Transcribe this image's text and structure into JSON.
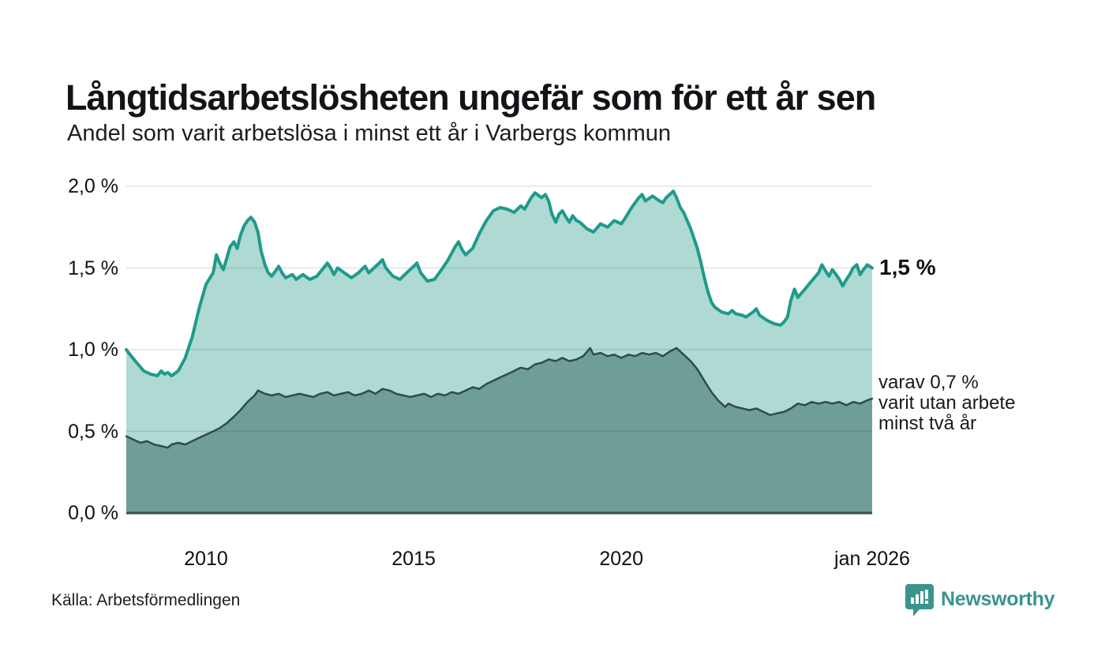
{
  "header": {
    "title": "Långtidsarbetslösheten ungefär som för ett år sen",
    "subtitle": "Andel som varit arbetslösa i minst ett år i Varbergs kommun"
  },
  "chart_data": {
    "type": "area",
    "title": "Långtidsarbetslösheten ungefär som för ett år sen",
    "subtitle": "Andel som varit arbetslösa i minst ett år i Varbergs kommun",
    "unit": "%",
    "grid": true,
    "x_range": [
      2008.08,
      2026.04
    ],
    "y_range": [
      0,
      2.0
    ],
    "x_ticks": [
      {
        "x": 2010,
        "label": "2010"
      },
      {
        "x": 2015,
        "label": "2015"
      },
      {
        "x": 2020,
        "label": "2020"
      },
      {
        "x": 2026.04,
        "label": "jan 2026"
      }
    ],
    "y_ticks": [
      {
        "v": 0.0,
        "label": "0,0 %"
      },
      {
        "v": 0.5,
        "label": "0,5 %"
      },
      {
        "v": 1.0,
        "label": "1,0 %"
      },
      {
        "v": 1.5,
        "label": "1,5 %"
      },
      {
        "v": 2.0,
        "label": "2,0 %"
      }
    ],
    "series": [
      {
        "name": "Andel som varit arbetslösa minst ett år",
        "line_color": "#1f9a8b",
        "fill_color": "#aedad3",
        "line_width": 4,
        "latest_value": "1,5 %",
        "points": [
          [
            2008.08,
            1.0
          ],
          [
            2008.17,
            0.97
          ],
          [
            2008.33,
            0.92
          ],
          [
            2008.5,
            0.87
          ],
          [
            2008.67,
            0.85
          ],
          [
            2008.83,
            0.84
          ],
          [
            2008.92,
            0.87
          ],
          [
            2009.0,
            0.85
          ],
          [
            2009.08,
            0.86
          ],
          [
            2009.17,
            0.84
          ],
          [
            2009.33,
            0.87
          ],
          [
            2009.5,
            0.95
          ],
          [
            2009.67,
            1.08
          ],
          [
            2009.83,
            1.25
          ],
          [
            2010.0,
            1.4
          ],
          [
            2010.17,
            1.47
          ],
          [
            2010.25,
            1.58
          ],
          [
            2010.33,
            1.53
          ],
          [
            2010.42,
            1.49
          ],
          [
            2010.5,
            1.56
          ],
          [
            2010.58,
            1.63
          ],
          [
            2010.67,
            1.66
          ],
          [
            2010.75,
            1.62
          ],
          [
            2010.83,
            1.7
          ],
          [
            2010.92,
            1.76
          ],
          [
            2011.0,
            1.79
          ],
          [
            2011.08,
            1.81
          ],
          [
            2011.17,
            1.78
          ],
          [
            2011.25,
            1.72
          ],
          [
            2011.33,
            1.6
          ],
          [
            2011.42,
            1.52
          ],
          [
            2011.5,
            1.47
          ],
          [
            2011.58,
            1.45
          ],
          [
            2011.67,
            1.48
          ],
          [
            2011.75,
            1.51
          ],
          [
            2011.83,
            1.47
          ],
          [
            2011.92,
            1.44
          ],
          [
            2012.08,
            1.46
          ],
          [
            2012.17,
            1.43
          ],
          [
            2012.33,
            1.46
          ],
          [
            2012.5,
            1.43
          ],
          [
            2012.67,
            1.45
          ],
          [
            2012.83,
            1.5
          ],
          [
            2012.92,
            1.53
          ],
          [
            2013.0,
            1.5
          ],
          [
            2013.08,
            1.46
          ],
          [
            2013.17,
            1.5
          ],
          [
            2013.33,
            1.47
          ],
          [
            2013.5,
            1.44
          ],
          [
            2013.67,
            1.47
          ],
          [
            2013.83,
            1.51
          ],
          [
            2013.92,
            1.47
          ],
          [
            2014.0,
            1.49
          ],
          [
            2014.17,
            1.53
          ],
          [
            2014.25,
            1.55
          ],
          [
            2014.33,
            1.5
          ],
          [
            2014.5,
            1.45
          ],
          [
            2014.67,
            1.43
          ],
          [
            2014.83,
            1.47
          ],
          [
            2015.0,
            1.51
          ],
          [
            2015.08,
            1.53
          ],
          [
            2015.17,
            1.47
          ],
          [
            2015.33,
            1.42
          ],
          [
            2015.5,
            1.43
          ],
          [
            2015.67,
            1.49
          ],
          [
            2015.83,
            1.55
          ],
          [
            2016.0,
            1.63
          ],
          [
            2016.08,
            1.66
          ],
          [
            2016.17,
            1.61
          ],
          [
            2016.25,
            1.58
          ],
          [
            2016.42,
            1.62
          ],
          [
            2016.58,
            1.71
          ],
          [
            2016.75,
            1.79
          ],
          [
            2016.92,
            1.85
          ],
          [
            2017.08,
            1.87
          ],
          [
            2017.25,
            1.86
          ],
          [
            2017.42,
            1.84
          ],
          [
            2017.58,
            1.88
          ],
          [
            2017.67,
            1.86
          ],
          [
            2017.83,
            1.93
          ],
          [
            2017.92,
            1.96
          ],
          [
            2018.08,
            1.93
          ],
          [
            2018.17,
            1.95
          ],
          [
            2018.25,
            1.91
          ],
          [
            2018.33,
            1.83
          ],
          [
            2018.42,
            1.78
          ],
          [
            2018.5,
            1.83
          ],
          [
            2018.58,
            1.85
          ],
          [
            2018.67,
            1.81
          ],
          [
            2018.75,
            1.78
          ],
          [
            2018.83,
            1.82
          ],
          [
            2018.92,
            1.79
          ],
          [
            2019.0,
            1.78
          ],
          [
            2019.17,
            1.74
          ],
          [
            2019.33,
            1.72
          ],
          [
            2019.5,
            1.77
          ],
          [
            2019.67,
            1.75
          ],
          [
            2019.83,
            1.79
          ],
          [
            2020.0,
            1.77
          ],
          [
            2020.08,
            1.8
          ],
          [
            2020.25,
            1.87
          ],
          [
            2020.42,
            1.93
          ],
          [
            2020.5,
            1.95
          ],
          [
            2020.58,
            1.91
          ],
          [
            2020.75,
            1.94
          ],
          [
            2020.92,
            1.91
          ],
          [
            2021.0,
            1.9
          ],
          [
            2021.08,
            1.93
          ],
          [
            2021.25,
            1.97
          ],
          [
            2021.33,
            1.93
          ],
          [
            2021.42,
            1.87
          ],
          [
            2021.5,
            1.84
          ],
          [
            2021.67,
            1.74
          ],
          [
            2021.83,
            1.62
          ],
          [
            2021.92,
            1.53
          ],
          [
            2022.0,
            1.44
          ],
          [
            2022.08,
            1.36
          ],
          [
            2022.17,
            1.29
          ],
          [
            2022.25,
            1.26
          ],
          [
            2022.42,
            1.23
          ],
          [
            2022.58,
            1.22
          ],
          [
            2022.67,
            1.24
          ],
          [
            2022.75,
            1.22
          ],
          [
            2022.92,
            1.21
          ],
          [
            2023.0,
            1.2
          ],
          [
            2023.17,
            1.23
          ],
          [
            2023.25,
            1.25
          ],
          [
            2023.33,
            1.21
          ],
          [
            2023.5,
            1.18
          ],
          [
            2023.67,
            1.16
          ],
          [
            2023.83,
            1.15
          ],
          [
            2023.92,
            1.17
          ],
          [
            2024.0,
            1.2
          ],
          [
            2024.08,
            1.3
          ],
          [
            2024.17,
            1.37
          ],
          [
            2024.25,
            1.32
          ],
          [
            2024.42,
            1.37
          ],
          [
            2024.58,
            1.42
          ],
          [
            2024.75,
            1.47
          ],
          [
            2024.83,
            1.52
          ],
          [
            2024.92,
            1.48
          ],
          [
            2025.0,
            1.45
          ],
          [
            2025.08,
            1.49
          ],
          [
            2025.17,
            1.46
          ],
          [
            2025.25,
            1.43
          ],
          [
            2025.33,
            1.39
          ],
          [
            2025.42,
            1.43
          ],
          [
            2025.5,
            1.46
          ],
          [
            2025.58,
            1.5
          ],
          [
            2025.67,
            1.52
          ],
          [
            2025.75,
            1.46
          ],
          [
            2025.83,
            1.49
          ],
          [
            2025.92,
            1.52
          ],
          [
            2026.04,
            1.5
          ]
        ]
      },
      {
        "name": "varav utan arbete minst två år",
        "line_color": "#2e4c48",
        "fill_color": "#6f9d97",
        "line_width": 2.5,
        "latest_value": "0,7 %",
        "points": [
          [
            2008.08,
            0.47
          ],
          [
            2008.25,
            0.45
          ],
          [
            2008.42,
            0.43
          ],
          [
            2008.58,
            0.44
          ],
          [
            2008.75,
            0.42
          ],
          [
            2008.92,
            0.41
          ],
          [
            2009.08,
            0.4
          ],
          [
            2009.17,
            0.42
          ],
          [
            2009.33,
            0.43
          ],
          [
            2009.5,
            0.42
          ],
          [
            2009.67,
            0.44
          ],
          [
            2009.83,
            0.46
          ],
          [
            2010.0,
            0.48
          ],
          [
            2010.17,
            0.5
          ],
          [
            2010.33,
            0.52
          ],
          [
            2010.5,
            0.55
          ],
          [
            2010.67,
            0.59
          ],
          [
            2010.83,
            0.63
          ],
          [
            2011.0,
            0.68
          ],
          [
            2011.17,
            0.72
          ],
          [
            2011.25,
            0.75
          ],
          [
            2011.42,
            0.73
          ],
          [
            2011.58,
            0.72
          ],
          [
            2011.75,
            0.73
          ],
          [
            2011.92,
            0.71
          ],
          [
            2012.08,
            0.72
          ],
          [
            2012.25,
            0.73
          ],
          [
            2012.42,
            0.72
          ],
          [
            2012.58,
            0.71
          ],
          [
            2012.75,
            0.73
          ],
          [
            2012.92,
            0.74
          ],
          [
            2013.08,
            0.72
          ],
          [
            2013.25,
            0.73
          ],
          [
            2013.42,
            0.74
          ],
          [
            2013.58,
            0.72
          ],
          [
            2013.75,
            0.73
          ],
          [
            2013.92,
            0.75
          ],
          [
            2014.08,
            0.73
          ],
          [
            2014.25,
            0.76
          ],
          [
            2014.42,
            0.75
          ],
          [
            2014.58,
            0.73
          ],
          [
            2014.75,
            0.72
          ],
          [
            2014.92,
            0.71
          ],
          [
            2015.08,
            0.72
          ],
          [
            2015.25,
            0.73
          ],
          [
            2015.42,
            0.71
          ],
          [
            2015.58,
            0.73
          ],
          [
            2015.75,
            0.72
          ],
          [
            2015.92,
            0.74
          ],
          [
            2016.08,
            0.73
          ],
          [
            2016.25,
            0.75
          ],
          [
            2016.42,
            0.77
          ],
          [
            2016.58,
            0.76
          ],
          [
            2016.75,
            0.79
          ],
          [
            2016.92,
            0.81
          ],
          [
            2017.08,
            0.83
          ],
          [
            2017.25,
            0.85
          ],
          [
            2017.42,
            0.87
          ],
          [
            2017.58,
            0.89
          ],
          [
            2017.75,
            0.88
          ],
          [
            2017.92,
            0.91
          ],
          [
            2018.08,
            0.92
          ],
          [
            2018.25,
            0.94
          ],
          [
            2018.42,
            0.93
          ],
          [
            2018.58,
            0.95
          ],
          [
            2018.75,
            0.93
          ],
          [
            2018.92,
            0.94
          ],
          [
            2019.08,
            0.96
          ],
          [
            2019.25,
            1.01
          ],
          [
            2019.33,
            0.97
          ],
          [
            2019.5,
            0.98
          ],
          [
            2019.67,
            0.96
          ],
          [
            2019.83,
            0.97
          ],
          [
            2020.0,
            0.95
          ],
          [
            2020.17,
            0.97
          ],
          [
            2020.33,
            0.96
          ],
          [
            2020.5,
            0.98
          ],
          [
            2020.67,
            0.97
          ],
          [
            2020.83,
            0.98
          ],
          [
            2021.0,
            0.96
          ],
          [
            2021.17,
            0.99
          ],
          [
            2021.33,
            1.01
          ],
          [
            2021.5,
            0.97
          ],
          [
            2021.67,
            0.93
          ],
          [
            2021.83,
            0.88
          ],
          [
            2022.0,
            0.81
          ],
          [
            2022.17,
            0.74
          ],
          [
            2022.33,
            0.69
          ],
          [
            2022.5,
            0.65
          ],
          [
            2022.58,
            0.67
          ],
          [
            2022.75,
            0.65
          ],
          [
            2022.92,
            0.64
          ],
          [
            2023.08,
            0.63
          ],
          [
            2023.25,
            0.64
          ],
          [
            2023.42,
            0.62
          ],
          [
            2023.58,
            0.6
          ],
          [
            2023.75,
            0.61
          ],
          [
            2023.92,
            0.62
          ],
          [
            2024.08,
            0.64
          ],
          [
            2024.25,
            0.67
          ],
          [
            2024.42,
            0.66
          ],
          [
            2024.58,
            0.68
          ],
          [
            2024.75,
            0.67
          ],
          [
            2024.92,
            0.68
          ],
          [
            2025.08,
            0.67
          ],
          [
            2025.25,
            0.68
          ],
          [
            2025.42,
            0.66
          ],
          [
            2025.58,
            0.68
          ],
          [
            2025.75,
            0.67
          ],
          [
            2025.92,
            0.69
          ],
          [
            2026.04,
            0.7
          ]
        ]
      }
    ],
    "axis_colors": {
      "gridline": "rgba(0,0,0,0.11)",
      "baseline": "#34504b"
    }
  },
  "annotations": {
    "latest_value": "1,5 %",
    "secondary_lines": [
      "varav 0,7 %",
      "varit utan arbete",
      "minst två år"
    ]
  },
  "footer": {
    "source": "Källa: Arbetsförmedlingen"
  },
  "branding": {
    "logo_text": "Newsworthy",
    "logo_color": "#3a948b",
    "logo_icon": "bar-chart-speech-bubble-icon"
  }
}
